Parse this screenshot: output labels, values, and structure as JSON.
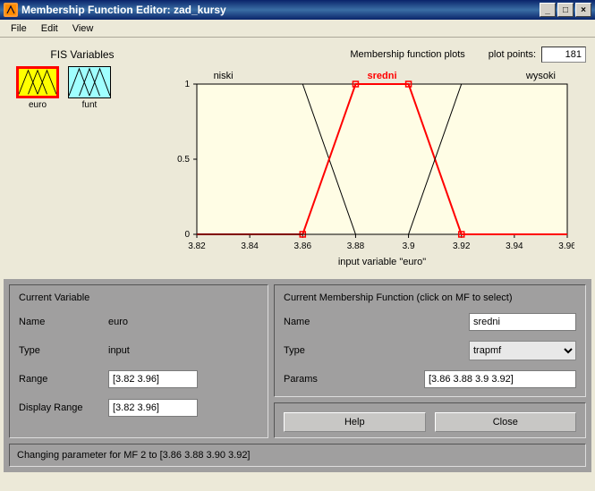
{
  "window": {
    "title": "Membership Function Editor: zad_kursy"
  },
  "menu": {
    "file": "File",
    "edit": "Edit",
    "view": "View"
  },
  "fis": {
    "title": "FIS Variables",
    "vars": [
      {
        "name": "euro",
        "selected": true,
        "color": "#ffff00"
      },
      {
        "name": "funt",
        "selected": false,
        "color": "#a0ffff"
      }
    ]
  },
  "plot": {
    "header_label": "Membership function plots",
    "points_label": "plot points:",
    "points_value": "181",
    "xlabel": "input variable \"euro\"",
    "xlim": [
      3.82,
      3.96
    ],
    "ylim": [
      0,
      1
    ],
    "xticks": [
      3.82,
      3.84,
      3.86,
      3.88,
      3.9,
      3.92,
      3.94,
      3.96
    ],
    "yticks": [
      0,
      0.5,
      1
    ],
    "background": "#fffde5",
    "mfs": [
      {
        "label": "niski",
        "color": "#000000",
        "selected": false,
        "type": "trapmf",
        "params": [
          3.78,
          3.8,
          3.86,
          3.88
        ]
      },
      {
        "label": "sredni",
        "color": "#ff0000",
        "selected": true,
        "type": "trapmf",
        "params": [
          3.86,
          3.88,
          3.9,
          3.92
        ]
      },
      {
        "label": "wysoki",
        "color": "#000000",
        "selected": false,
        "type": "trapmf",
        "params": [
          3.9,
          3.92,
          3.98,
          4.0
        ]
      }
    ]
  },
  "currentVariable": {
    "title": "Current Variable",
    "name_label": "Name",
    "name_value": "euro",
    "type_label": "Type",
    "type_value": "input",
    "range_label": "Range",
    "range_value": "[3.82 3.96]",
    "display_range_label": "Display Range",
    "display_range_value": "[3.82 3.96]"
  },
  "currentMF": {
    "title": "Current Membership Function (click on MF to select)",
    "name_label": "Name",
    "name_value": "sredni",
    "type_label": "Type",
    "type_value": "trapmf",
    "params_label": "Params",
    "params_value": "[3.86 3.88 3.9 3.92]",
    "help_label": "Help",
    "close_label": "Close"
  },
  "status": {
    "text": "Changing parameter for MF 2 to  [3.86 3.88 3.90 3.92]"
  }
}
